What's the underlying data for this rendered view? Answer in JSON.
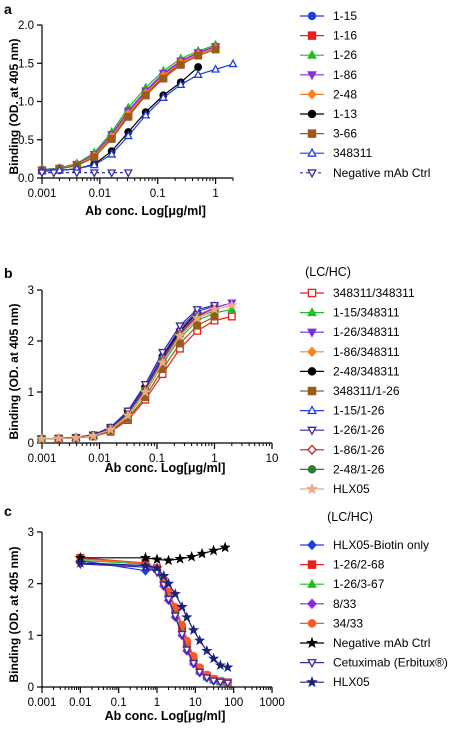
{
  "chart_data": [
    {
      "type": "line",
      "panel_label": "a",
      "xlabel": "Ab conc. Log[μg/ml]",
      "ylabel": "Binding (OD. at 405 nm)",
      "xscale": "log",
      "xlim": [
        0.001,
        2
      ],
      "ylim": [
        0,
        2
      ],
      "xticks": [
        0.001,
        0.01,
        0.1,
        1
      ],
      "xtick_labels": [
        "0.001",
        "0.01",
        "0.1",
        "1"
      ],
      "yticks": [
        0,
        0.5,
        1,
        1.5,
        2
      ],
      "ytick_labels": [
        "0.0",
        "0.5",
        "1.0",
        "1.5",
        "2.0"
      ],
      "grid": false,
      "legend_placement": "right",
      "series": [
        {
          "name": "1-15",
          "color": "#1f3fe0",
          "marker": "circle",
          "fill": true,
          "x": [
            0.001,
            0.002,
            0.004,
            0.008,
            0.016,
            0.031,
            0.062,
            0.125,
            0.25,
            0.5,
            1.0
          ],
          "y": [
            0.11,
            0.13,
            0.18,
            0.3,
            0.55,
            0.85,
            1.12,
            1.35,
            1.52,
            1.63,
            1.72
          ]
        },
        {
          "name": "1-16",
          "color": "#e8201e",
          "marker": "square",
          "fill": true,
          "x": [
            0.001,
            0.002,
            0.004,
            0.008,
            0.016,
            0.031,
            0.062,
            0.125,
            0.25,
            0.5,
            1.0
          ],
          "y": [
            0.1,
            0.12,
            0.17,
            0.28,
            0.52,
            0.82,
            1.1,
            1.32,
            1.5,
            1.62,
            1.7
          ]
        },
        {
          "name": "1-26",
          "color": "#22bb22",
          "marker": "triangle-up",
          "fill": true,
          "x": [
            0.001,
            0.002,
            0.004,
            0.008,
            0.016,
            0.031,
            0.062,
            0.125,
            0.25,
            0.5,
            1.0
          ],
          "y": [
            0.1,
            0.13,
            0.19,
            0.33,
            0.6,
            0.92,
            1.18,
            1.4,
            1.56,
            1.66,
            1.74
          ]
        },
        {
          "name": "1-86",
          "color": "#8a2be2",
          "marker": "triangle-down",
          "fill": true,
          "x": [
            0.001,
            0.002,
            0.004,
            0.008,
            0.016,
            0.031,
            0.062,
            0.125,
            0.25,
            0.5,
            1.0
          ],
          "y": [
            0.1,
            0.12,
            0.18,
            0.31,
            0.57,
            0.88,
            1.14,
            1.37,
            1.53,
            1.64,
            1.72
          ]
        },
        {
          "name": "2-48",
          "color": "#ff7f27",
          "marker": "diamond",
          "fill": true,
          "x": [
            0.001,
            0.002,
            0.004,
            0.008,
            0.016,
            0.031,
            0.062,
            0.125,
            0.25,
            0.5,
            1.0
          ],
          "y": [
            0.1,
            0.12,
            0.17,
            0.29,
            0.54,
            0.84,
            1.11,
            1.34,
            1.51,
            1.62,
            1.7
          ]
        },
        {
          "name": "1-13",
          "color": "#000000",
          "marker": "circle",
          "fill": true,
          "x": [
            0.001,
            0.002,
            0.004,
            0.008,
            0.016,
            0.031,
            0.062,
            0.125,
            0.25,
            0.5
          ],
          "y": [
            0.09,
            0.1,
            0.12,
            0.18,
            0.35,
            0.6,
            0.86,
            1.08,
            1.25,
            1.45
          ]
        },
        {
          "name": "3-66",
          "color": "#9c5a1b",
          "marker": "square",
          "fill": true,
          "x": [
            0.001,
            0.002,
            0.004,
            0.008,
            0.016,
            0.031,
            0.062,
            0.125,
            0.25,
            0.5,
            1.0
          ],
          "y": [
            0.1,
            0.12,
            0.16,
            0.27,
            0.51,
            0.8,
            1.08,
            1.3,
            1.48,
            1.6,
            1.68
          ]
        },
        {
          "name": "348311",
          "color": "#1f3fe0",
          "marker": "triangle-up",
          "fill": false,
          "x": [
            0.001,
            0.002,
            0.004,
            0.008,
            0.016,
            0.031,
            0.062,
            0.125,
            0.25,
            0.5,
            1.0,
            2.0
          ],
          "y": [
            0.09,
            0.1,
            0.12,
            0.17,
            0.31,
            0.55,
            0.82,
            1.05,
            1.22,
            1.35,
            1.42,
            1.49
          ]
        },
        {
          "name": "Negative mAb Ctrl",
          "color": "#3a2aa0",
          "marker": "triangle-down",
          "fill": false,
          "dashed": true,
          "x": [
            0.001,
            0.0016,
            0.004,
            0.008,
            0.016,
            0.031
          ],
          "y": [
            0.07,
            0.07,
            0.07,
            0.07,
            0.07,
            0.07
          ]
        }
      ]
    },
    {
      "type": "line",
      "panel_label": "b",
      "legend_title": "(LC/HC)",
      "xlabel": "Ab conc. Log[μg/ml]",
      "ylabel": "Binding (OD. at 405 nm)",
      "xscale": "log",
      "xlim": [
        0.001,
        10
      ],
      "ylim": [
        0,
        3
      ],
      "xticks": [
        0.001,
        0.01,
        0.1,
        1,
        10
      ],
      "xtick_labels": [
        "0.001",
        "0.01",
        "0.1",
        "1",
        "10"
      ],
      "yticks": [
        0,
        1,
        2,
        3
      ],
      "ytick_labels": [
        "0",
        "1",
        "2",
        "3"
      ],
      "grid": false,
      "legend_placement": "right",
      "series": [
        {
          "name": "348311/348311",
          "color": "#e8201e",
          "marker": "square",
          "fill": false,
          "x": [
            0.00098,
            0.00195,
            0.0039,
            0.0078,
            0.0156,
            0.0312,
            0.0625,
            0.125,
            0.25,
            0.5,
            1.0,
            2.0
          ],
          "y": [
            0.08,
            0.09,
            0.1,
            0.13,
            0.22,
            0.45,
            0.85,
            1.35,
            1.85,
            2.2,
            2.4,
            2.48
          ]
        },
        {
          "name": "1-15/348311",
          "color": "#22bb22",
          "marker": "triangle-up",
          "fill": true,
          "x": [
            0.00098,
            0.00195,
            0.0039,
            0.0078,
            0.0156,
            0.0312,
            0.0625,
            0.125,
            0.25,
            0.5,
            1.0,
            2.0
          ],
          "y": [
            0.08,
            0.09,
            0.1,
            0.14,
            0.25,
            0.52,
            0.98,
            1.55,
            2.05,
            2.4,
            2.55,
            2.62
          ]
        },
        {
          "name": "1-26/348311",
          "color": "#7b2be2",
          "marker": "triangle-down",
          "fill": true,
          "x": [
            0.00098,
            0.00195,
            0.0039,
            0.0078,
            0.0156,
            0.0312,
            0.0625,
            0.125,
            0.25,
            0.5,
            1.0,
            2.0
          ],
          "y": [
            0.08,
            0.09,
            0.11,
            0.15,
            0.28,
            0.58,
            1.06,
            1.65,
            2.18,
            2.5,
            2.65,
            2.75
          ]
        },
        {
          "name": "1-86/348311",
          "color": "#ff7f27",
          "marker": "diamond",
          "fill": true,
          "x": [
            0.00098,
            0.00195,
            0.0039,
            0.0078,
            0.0156,
            0.0312,
            0.0625,
            0.125,
            0.25,
            0.5,
            1.0
          ],
          "y": [
            0.08,
            0.09,
            0.1,
            0.14,
            0.26,
            0.54,
            1.0,
            1.58,
            2.1,
            2.45,
            2.6
          ]
        },
        {
          "name": "2-48/348311",
          "color": "#000000",
          "marker": "circle",
          "fill": true,
          "x": [
            0.00098,
            0.00195,
            0.0039,
            0.0078,
            0.0156,
            0.0312,
            0.0625,
            0.125,
            0.25,
            0.5
          ],
          "y": [
            0.08,
            0.09,
            0.11,
            0.16,
            0.3,
            0.62,
            1.1,
            1.7,
            2.2,
            2.55
          ]
        },
        {
          "name": "348311/1-26",
          "color": "#9c5a1b",
          "marker": "square",
          "fill": true,
          "x": [
            0.00098,
            0.00195,
            0.0039,
            0.0078,
            0.0156,
            0.0312,
            0.0625,
            0.125,
            0.25,
            0.5,
            1.0
          ],
          "y": [
            0.08,
            0.09,
            0.1,
            0.13,
            0.23,
            0.48,
            0.9,
            1.45,
            1.95,
            2.3,
            2.48
          ]
        },
        {
          "name": "1-15/1-26",
          "color": "#1f3fe0",
          "marker": "triangle-up",
          "fill": false,
          "x": [
            0.00098,
            0.00195,
            0.0039,
            0.0078,
            0.0156,
            0.0312,
            0.0625,
            0.125,
            0.25,
            0.5,
            1.0
          ],
          "y": [
            0.08,
            0.09,
            0.11,
            0.15,
            0.29,
            0.6,
            1.1,
            1.72,
            2.25,
            2.58,
            2.68
          ]
        },
        {
          "name": "1-26/1-26",
          "color": "#3a2aa0",
          "marker": "triangle-down",
          "fill": false,
          "x": [
            0.00098,
            0.00195,
            0.0039,
            0.0078,
            0.0156,
            0.0312,
            0.0625,
            0.125,
            0.25,
            0.5,
            1.0
          ],
          "y": [
            0.08,
            0.09,
            0.11,
            0.16,
            0.31,
            0.63,
            1.15,
            1.78,
            2.3,
            2.62,
            2.7
          ]
        },
        {
          "name": "1-86/1-26",
          "color": "#cc1f1f",
          "marker": "diamond",
          "fill": false,
          "x": [
            0.00098,
            0.00195,
            0.0039,
            0.0078,
            0.0156,
            0.0312,
            0.0625,
            0.125,
            0.25,
            0.5,
            1.0
          ],
          "y": [
            0.08,
            0.09,
            0.1,
            0.14,
            0.27,
            0.56,
            1.04,
            1.62,
            2.14,
            2.48,
            2.62
          ]
        },
        {
          "name": "2-48/1-26",
          "color": "#2e7d32",
          "marker": "circle",
          "fill": true,
          "x": [
            0.00098,
            0.00195,
            0.0039,
            0.0078,
            0.0156,
            0.0312,
            0.0625,
            0.125,
            0.25,
            0.5,
            1.0
          ],
          "y": [
            0.08,
            0.09,
            0.1,
            0.14,
            0.26,
            0.55,
            1.02,
            1.6,
            2.12,
            2.46,
            2.6
          ]
        },
        {
          "name": "HLX05",
          "color": "#f4a582",
          "marker": "star",
          "fill": true,
          "x": [
            0.00098,
            0.00195,
            0.0039,
            0.0078,
            0.0156,
            0.0312,
            0.0625,
            0.125,
            0.25,
            0.5,
            1.0,
            2.0
          ],
          "y": [
            0.08,
            0.09,
            0.1,
            0.14,
            0.26,
            0.54,
            1.0,
            1.58,
            2.1,
            2.45,
            2.62,
            2.7
          ]
        }
      ]
    },
    {
      "type": "line",
      "panel_label": "c",
      "legend_title": "(LC/HC)",
      "xlabel": "Ab conc. Log[μg/ml]",
      "ylabel": "Binding (OD. at 405 nm)",
      "xscale": "log",
      "xlim": [
        0.001,
        1000
      ],
      "ylim": [
        0,
        3
      ],
      "xticks": [
        0.001,
        0.01,
        0.1,
        1,
        10,
        100,
        1000
      ],
      "xtick_labels": [
        "0.001",
        "0.01",
        "0.1",
        "1",
        "10",
        "100",
        "1000"
      ],
      "yticks": [
        0,
        1,
        2,
        3
      ],
      "ytick_labels": [
        "0",
        "1",
        "2",
        "3"
      ],
      "grid": false,
      "legend_placement": "right",
      "series": [
        {
          "name": "HLX05-Biotin only",
          "color": "#1f3fe0",
          "marker": "diamond",
          "fill": true,
          "x": [
            0.01,
            0.5,
            1.0
          ],
          "y": [
            2.45,
            2.25,
            2.28
          ]
        },
        {
          "name": "1-26/2-68",
          "color": "#e8201e",
          "marker": "square",
          "fill": true,
          "x": [
            0.01,
            0.5,
            1.0,
            1.5,
            2.0,
            3.0,
            4.5,
            6.0,
            9.0,
            13.0,
            20.0,
            30.0,
            45.0,
            70.0
          ],
          "y": [
            2.5,
            2.4,
            2.3,
            2.05,
            1.8,
            1.5,
            1.15,
            0.85,
            0.55,
            0.35,
            0.22,
            0.15,
            0.11,
            0.09
          ]
        },
        {
          "name": "1-26/3-67",
          "color": "#22bb22",
          "marker": "triangle-up",
          "fill": true,
          "x": [
            0.01,
            0.5,
            1.0,
            1.5,
            2.0,
            3.0,
            4.5,
            6.0,
            9.0,
            13.0,
            20.0,
            30.0,
            45.0,
            70.0
          ],
          "y": [
            2.45,
            2.38,
            2.28,
            2.0,
            1.72,
            1.4,
            1.05,
            0.75,
            0.48,
            0.3,
            0.19,
            0.13,
            0.1,
            0.08
          ]
        },
        {
          "name": "8/33",
          "color": "#8a2be2",
          "marker": "diamond",
          "fill": true,
          "x": [
            0.01,
            0.5,
            1.0,
            1.5,
            2.0,
            3.0,
            4.5,
            6.0,
            9.0,
            13.0,
            20.0,
            30.0,
            45.0,
            70.0
          ],
          "y": [
            2.4,
            2.35,
            2.25,
            1.95,
            1.68,
            1.35,
            1.0,
            0.7,
            0.45,
            0.28,
            0.18,
            0.12,
            0.1,
            0.08
          ]
        },
        {
          "name": "34/33",
          "color": "#ff5722",
          "marker": "circle",
          "fill": true,
          "x": [
            0.01,
            0.5,
            1.0,
            1.5,
            2.0,
            3.0,
            4.5,
            6.0,
            9.0,
            13.0,
            20.0,
            30.0,
            45.0,
            70.0
          ],
          "y": [
            2.48,
            2.4,
            2.3,
            2.08,
            1.85,
            1.55,
            1.2,
            0.9,
            0.6,
            0.38,
            0.24,
            0.16,
            0.12,
            0.09
          ]
        },
        {
          "name": "Negative mAb Ctrl",
          "color": "#000000",
          "marker": "star",
          "fill": true,
          "x": [
            0.01,
            0.5,
            1.0,
            2.0,
            4.0,
            8.0,
            15.0,
            30.0,
            60.0
          ],
          "y": [
            2.5,
            2.5,
            2.47,
            2.45,
            2.48,
            2.52,
            2.58,
            2.64,
            2.7
          ]
        },
        {
          "name": "Cetuximab (Erbitux®)",
          "color": "#3a2aa0",
          "marker": "triangle-down",
          "fill": false,
          "x": [
            0.01,
            0.5,
            1.0,
            1.5,
            2.0,
            3.0,
            4.5,
            6.0,
            9.0,
            13.0,
            20.0,
            30.0,
            45.0,
            70.0
          ],
          "y": [
            2.38,
            2.32,
            2.22,
            1.98,
            1.7,
            1.38,
            1.02,
            0.72,
            0.46,
            0.29,
            0.18,
            0.12,
            0.1,
            0.08
          ]
        },
        {
          "name": "HLX05",
          "color": "#1a237e",
          "marker": "star",
          "fill": true,
          "x": [
            0.01,
            0.5,
            1.0,
            1.5,
            2.0,
            3.0,
            4.5,
            6.0,
            9.0,
            13.0,
            20.0,
            30.0,
            45.0,
            70.0
          ],
          "y": [
            2.4,
            2.35,
            2.3,
            2.15,
            2.0,
            1.8,
            1.55,
            1.35,
            1.1,
            0.9,
            0.7,
            0.55,
            0.42,
            0.38
          ]
        }
      ]
    }
  ]
}
